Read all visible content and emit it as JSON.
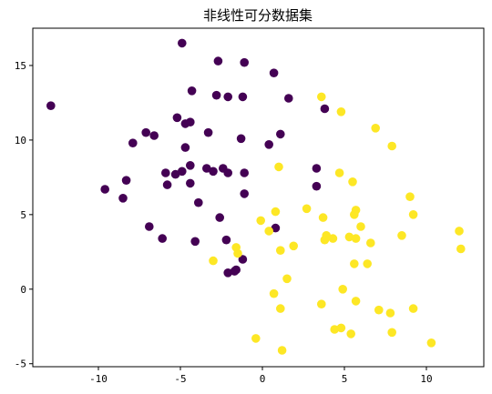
{
  "chart_data": {
    "type": "scatter",
    "title": "非线性可分数据集",
    "xlabel": "",
    "ylabel": "",
    "xlim": [
      -14,
      13.5
    ],
    "ylim": [
      -5.2,
      17.5
    ],
    "xticks": [
      -10,
      -5,
      0,
      5,
      10
    ],
    "yticks": [
      -5,
      0,
      5,
      10,
      15
    ],
    "xtick_labels": [
      "-10",
      "-5",
      "0",
      "5",
      "10"
    ],
    "ytick_labels": [
      "-5",
      "0",
      "5",
      "10",
      "15"
    ],
    "grid": false,
    "legend": "none",
    "colors": {
      "class0": "#440154",
      "class1": "#fde725"
    },
    "series": [
      {
        "class": 0,
        "points": [
          [
            -12.9,
            12.3
          ],
          [
            -4.9,
            16.5
          ],
          [
            -2.7,
            15.3
          ],
          [
            -1.1,
            15.2
          ],
          [
            0.7,
            14.5
          ],
          [
            -4.3,
            13.3
          ],
          [
            -2.8,
            13.0
          ],
          [
            -2.1,
            12.9
          ],
          [
            -1.2,
            12.9
          ],
          [
            1.6,
            12.8
          ],
          [
            3.8,
            12.1
          ],
          [
            -5.2,
            11.5
          ],
          [
            -4.7,
            11.1
          ],
          [
            -4.4,
            11.2
          ],
          [
            -7.1,
            10.5
          ],
          [
            -6.6,
            10.3
          ],
          [
            -3.3,
            10.5
          ],
          [
            -1.3,
            10.1
          ],
          [
            1.1,
            10.4
          ],
          [
            -7.9,
            9.8
          ],
          [
            0.4,
            9.7
          ],
          [
            -4.7,
            9.5
          ],
          [
            -4.4,
            8.3
          ],
          [
            -3.4,
            8.1
          ],
          [
            -2.4,
            8.1
          ],
          [
            -3.0,
            7.9
          ],
          [
            -2.1,
            7.8
          ],
          [
            -1.1,
            7.8
          ],
          [
            -5.9,
            7.8
          ],
          [
            -5.3,
            7.7
          ],
          [
            -4.9,
            7.9
          ],
          [
            -8.3,
            7.3
          ],
          [
            -5.8,
            7.0
          ],
          [
            -4.4,
            7.1
          ],
          [
            3.3,
            8.1
          ],
          [
            3.3,
            6.9
          ],
          [
            -9.6,
            6.7
          ],
          [
            -8.5,
            6.1
          ],
          [
            -1.1,
            6.4
          ],
          [
            -3.9,
            5.8
          ],
          [
            -2.6,
            4.8
          ],
          [
            -6.9,
            4.2
          ],
          [
            -6.1,
            3.4
          ],
          [
            -4.1,
            3.2
          ],
          [
            -2.2,
            3.3
          ],
          [
            0.8,
            4.1
          ],
          [
            -1.2,
            2.0
          ],
          [
            -1.6,
            1.3
          ],
          [
            -1.7,
            1.2
          ],
          [
            -2.1,
            1.1
          ]
        ]
      },
      {
        "class": 1,
        "points": [
          [
            3.6,
            12.9
          ],
          [
            4.8,
            11.9
          ],
          [
            6.9,
            10.8
          ],
          [
            7.9,
            9.6
          ],
          [
            1.0,
            8.2
          ],
          [
            4.7,
            7.8
          ],
          [
            5.5,
            7.2
          ],
          [
            9.0,
            6.2
          ],
          [
            0.8,
            5.2
          ],
          [
            9.2,
            5.0
          ],
          [
            2.7,
            5.4
          ],
          [
            3.7,
            4.8
          ],
          [
            5.7,
            5.3
          ],
          [
            5.6,
            5.0
          ],
          [
            6.0,
            4.2
          ],
          [
            -0.1,
            4.6
          ],
          [
            0.4,
            3.9
          ],
          [
            3.9,
            3.6
          ],
          [
            3.8,
            3.3
          ],
          [
            4.3,
            3.4
          ],
          [
            5.3,
            3.5
          ],
          [
            5.7,
            3.4
          ],
          [
            6.6,
            3.1
          ],
          [
            8.5,
            3.6
          ],
          [
            12.0,
            3.9
          ],
          [
            12.1,
            2.7
          ],
          [
            1.1,
            2.6
          ],
          [
            1.9,
            2.9
          ],
          [
            -1.6,
            2.8
          ],
          [
            -1.5,
            2.4
          ],
          [
            -3.0,
            1.9
          ],
          [
            5.6,
            1.7
          ],
          [
            6.4,
            1.7
          ],
          [
            1.5,
            0.7
          ],
          [
            0.7,
            -0.3
          ],
          [
            4.9,
            0.0
          ],
          [
            3.6,
            -1.0
          ],
          [
            5.7,
            -0.8
          ],
          [
            1.1,
            -1.3
          ],
          [
            7.1,
            -1.4
          ],
          [
            7.8,
            -1.6
          ],
          [
            9.2,
            -1.3
          ],
          [
            4.4,
            -2.7
          ],
          [
            4.8,
            -2.6
          ],
          [
            5.4,
            -3.0
          ],
          [
            7.9,
            -2.9
          ],
          [
            -0.4,
            -3.3
          ],
          [
            10.3,
            -3.6
          ],
          [
            1.2,
            -4.1
          ]
        ]
      }
    ]
  }
}
